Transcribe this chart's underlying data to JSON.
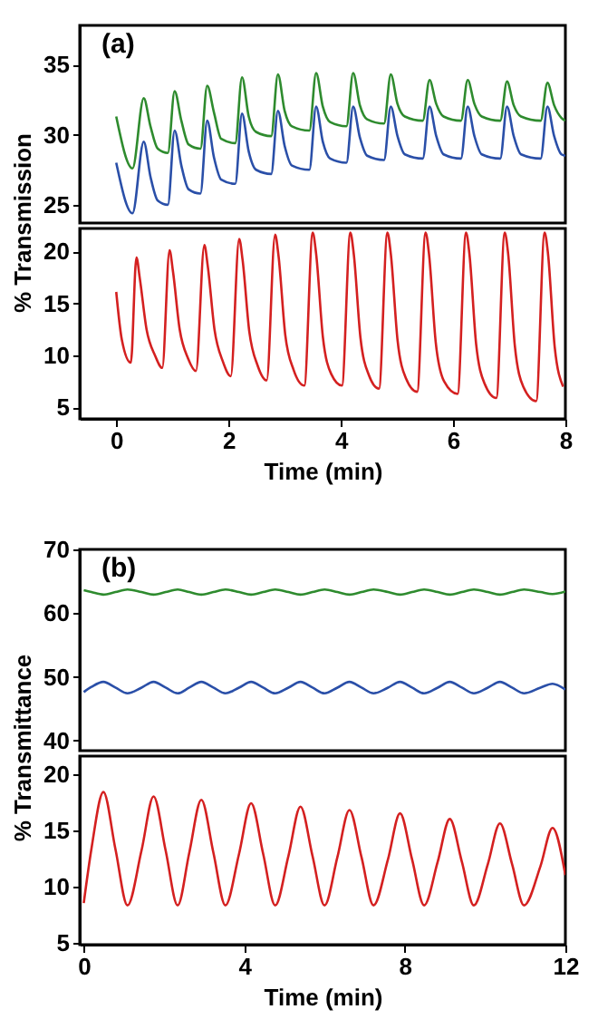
{
  "chart_data": [
    {
      "type": "line",
      "ylabel": "% Transmission",
      "annotations": [
        "(a)"
      ],
      "xlim": [
        -0.65,
        8
      ],
      "ylim": [
        23.7,
        37.8
      ],
      "yticks": [
        25,
        30,
        35
      ],
      "tick_labels": "y",
      "grid": false,
      "x": [
        0,
        0.29,
        0.49,
        0.61,
        0.74,
        0.92,
        1.04,
        1.16,
        1.29,
        1.5,
        1.62,
        1.74,
        1.87,
        2.12,
        2.24,
        2.36,
        2.49,
        2.76,
        2.88,
        3.0,
        3.13,
        3.44,
        3.56,
        3.68,
        3.81,
        4.1,
        4.22,
        4.34,
        4.47,
        4.77,
        4.89,
        5.01,
        5.14,
        5.46,
        5.58,
        5.7,
        5.83,
        6.14,
        6.26,
        6.38,
        6.51,
        6.84,
        6.96,
        7.08,
        7.21,
        7.56,
        7.68,
        7.8,
        7.93,
        8.0
      ],
      "series": [
        {
          "color": "#2e8b2e",
          "values": [
            31.3,
            27.6,
            32.6,
            30.6,
            29.0,
            28.7,
            33.1,
            31.0,
            29.3,
            29.0,
            33.5,
            31.6,
            29.7,
            29.4,
            34.1,
            31.3,
            30.2,
            29.9,
            34.3,
            31.7,
            30.6,
            30.3,
            34.4,
            32.0,
            30.9,
            30.6,
            34.4,
            32.1,
            31.1,
            30.8,
            34.3,
            32.2,
            31.3,
            31.0,
            33.9,
            32.2,
            31.3,
            31.0,
            33.9,
            32.2,
            31.3,
            31.0,
            33.8,
            32.1,
            31.3,
            31.0,
            33.7,
            32.1,
            31.2,
            31.0
          ]
        },
        {
          "color": "#2a4fa8",
          "values": [
            28.0,
            24.4,
            29.5,
            27.0,
            25.3,
            25.0,
            30.3,
            27.8,
            26.1,
            25.8,
            31.0,
            28.4,
            26.8,
            26.5,
            31.5,
            28.8,
            27.5,
            27.2,
            31.7,
            29.2,
            27.8,
            27.5,
            32.0,
            29.5,
            28.3,
            28.0,
            32.0,
            29.8,
            28.5,
            28.2,
            32.0,
            29.9,
            28.6,
            28.3,
            32.0,
            29.9,
            28.6,
            28.3,
            32.0,
            29.9,
            28.6,
            28.3,
            32.0,
            29.9,
            28.6,
            28.3,
            32.0,
            29.9,
            28.6,
            28.5
          ]
        }
      ]
    },
    {
      "type": "line",
      "xlabel": "Time (min)",
      "xlim": [
        -0.65,
        8
      ],
      "xticks": [
        0,
        2,
        4,
        6,
        8
      ],
      "ylim": [
        3.9,
        22.2
      ],
      "yticks": [
        5,
        10,
        15,
        20
      ],
      "grid": false,
      "x": [
        0,
        0.1,
        0.26,
        0.36,
        0.42,
        0.54,
        0.69,
        0.82,
        0.95,
        1.01,
        1.13,
        1.28,
        1.42,
        1.57,
        1.63,
        1.75,
        1.9,
        2.04,
        2.19,
        2.25,
        2.37,
        2.52,
        2.68,
        2.83,
        2.89,
        3.01,
        3.16,
        3.35,
        3.5,
        3.56,
        3.68,
        3.83,
        4.02,
        4.17,
        4.23,
        4.35,
        4.5,
        4.68,
        4.83,
        4.89,
        5.01,
        5.16,
        5.36,
        5.51,
        5.57,
        5.69,
        5.84,
        6.08,
        6.23,
        6.29,
        6.41,
        6.56,
        6.77,
        6.92,
        6.98,
        7.1,
        7.25,
        7.48,
        7.63,
        7.69,
        7.81,
        7.96
      ],
      "series": [
        {
          "color": "#d42020",
          "values": [
            16.1,
            11.5,
            9.3,
            19.4,
            17.4,
            12.5,
            10.0,
            8.8,
            20.1,
            18.1,
            12.5,
            9.7,
            8.5,
            20.6,
            18.6,
            12.5,
            9.4,
            8.0,
            21.2,
            19.2,
            12.3,
            9.0,
            7.6,
            21.6,
            19.6,
            12.0,
            8.6,
            7.1,
            21.8,
            19.8,
            11.8,
            8.2,
            7.1,
            21.8,
            19.8,
            11.7,
            8.1,
            6.8,
            21.8,
            19.8,
            11.5,
            7.8,
            6.5,
            21.8,
            19.8,
            11.3,
            7.5,
            6.3,
            21.8,
            19.8,
            11.1,
            7.3,
            5.9,
            21.8,
            19.8,
            10.9,
            7.0,
            5.6,
            21.8,
            19.8,
            10.8,
            7.0
          ]
        }
      ]
    },
    {
      "type": "line",
      "ylabel": "% Transmittance",
      "annotations": [
        "(b)"
      ],
      "xlim": [
        -0.1,
        12
      ],
      "ylim": [
        38.4,
        70
      ],
      "yticks": [
        40,
        50,
        60,
        70
      ],
      "tick_labels": "y",
      "grid": false,
      "x": [
        0,
        0.19,
        0.49,
        0.79,
        1.09,
        1.44,
        1.74,
        2.04,
        2.34,
        2.63,
        2.93,
        3.23,
        3.53,
        3.87,
        4.17,
        4.47,
        4.77,
        5.1,
        5.4,
        5.7,
        6.0,
        6.32,
        6.62,
        6.92,
        7.22,
        7.58,
        7.88,
        8.18,
        8.48,
        8.82,
        9.12,
        9.42,
        9.72,
        10.07,
        10.37,
        10.67,
        10.97,
        11.38,
        11.68,
        12.0
      ],
      "series": [
        {
          "color": "#2e8b2e",
          "values": [
            63.6,
            63.3,
            62.9,
            63.3,
            63.7,
            63.3,
            62.9,
            63.3,
            63.7,
            63.3,
            62.9,
            63.3,
            63.7,
            63.3,
            62.9,
            63.3,
            63.7,
            63.3,
            62.9,
            63.3,
            63.7,
            63.3,
            62.9,
            63.3,
            63.7,
            63.3,
            62.9,
            63.3,
            63.7,
            63.3,
            62.9,
            63.3,
            63.7,
            63.3,
            62.9,
            63.3,
            63.7,
            63.3,
            63.0,
            63.4
          ]
        },
        {
          "color": "#2a4fa8",
          "values": [
            47.6,
            48.4,
            49.2,
            48.3,
            47.4,
            48.3,
            49.2,
            48.3,
            47.4,
            48.3,
            49.2,
            48.3,
            47.4,
            48.3,
            49.2,
            48.3,
            47.4,
            48.3,
            49.2,
            48.3,
            47.4,
            48.3,
            49.2,
            48.3,
            47.4,
            48.3,
            49.2,
            48.3,
            47.4,
            48.3,
            49.2,
            48.3,
            47.4,
            48.3,
            49.2,
            48.3,
            47.4,
            48.3,
            48.9,
            48.0
          ]
        }
      ]
    },
    {
      "type": "line",
      "xlabel": "Time (min)",
      "xlim": [
        -0.1,
        12
      ],
      "xticks": [
        0,
        4,
        8,
        12
      ],
      "ylim": [
        4.8,
        21.6
      ],
      "yticks": [
        5,
        10,
        15,
        20
      ],
      "grid": false,
      "x": [
        0,
        0.19,
        0.49,
        0.79,
        1.09,
        1.44,
        1.74,
        2.04,
        2.34,
        2.63,
        2.93,
        3.23,
        3.53,
        3.87,
        4.17,
        4.47,
        4.77,
        5.1,
        5.4,
        5.7,
        6.0,
        6.32,
        6.62,
        6.92,
        7.22,
        7.58,
        7.88,
        8.18,
        8.48,
        8.82,
        9.12,
        9.42,
        9.72,
        10.07,
        10.37,
        10.67,
        10.97,
        11.38,
        11.68,
        12.0
      ],
      "series": [
        {
          "color": "#d42020",
          "values": [
            8.5,
            13.3,
            18.4,
            13.3,
            8.3,
            13.2,
            18.0,
            13.2,
            8.3,
            13.0,
            17.7,
            13.0,
            8.3,
            12.9,
            17.4,
            12.9,
            8.3,
            12.7,
            17.1,
            12.7,
            8.3,
            12.6,
            16.8,
            12.6,
            8.3,
            12.4,
            16.5,
            12.4,
            8.3,
            12.2,
            16.0,
            12.2,
            8.3,
            12.0,
            15.6,
            12.0,
            8.3,
            11.8,
            15.2,
            11.0
          ]
        }
      ]
    }
  ]
}
